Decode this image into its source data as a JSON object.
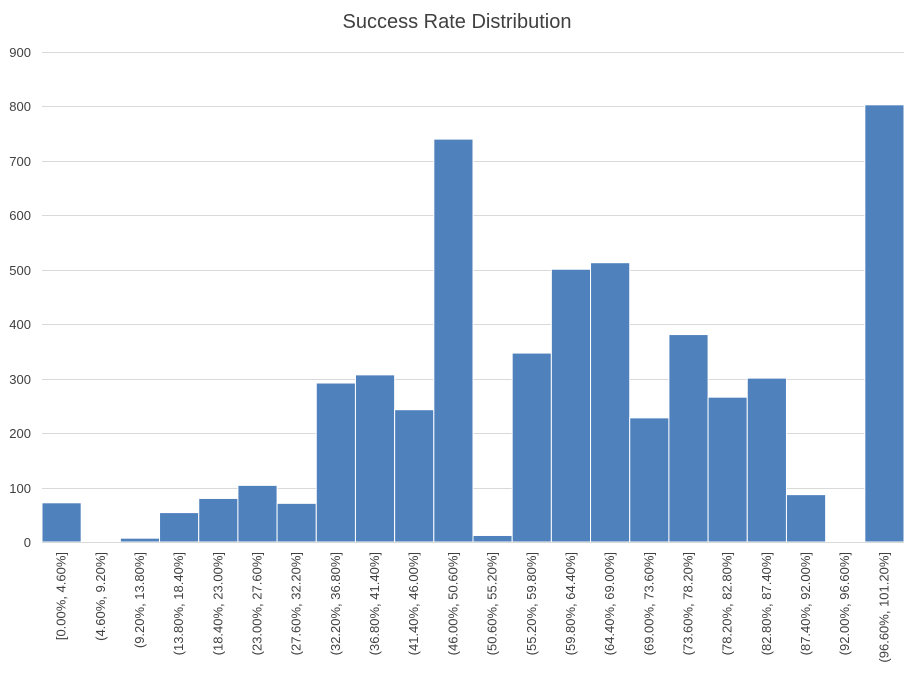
{
  "chart_data": {
    "type": "bar",
    "title": "Success Rate Distribution",
    "xlabel": "",
    "ylabel": "",
    "ylim": [
      0,
      900
    ],
    "yticks": [
      0,
      100,
      200,
      300,
      400,
      500,
      600,
      700,
      800,
      900
    ],
    "grid": true,
    "legend": "none",
    "bar_color": "#4f81bd",
    "categories": [
      "[0.00%, 4.60%]",
      "(4.60%, 9.20%]",
      "(9.20%, 13.80%]",
      "(13.80%, 18.40%]",
      "(18.40%, 23.00%]",
      "(23.00%, 27.60%]",
      "(27.60%, 32.20%]",
      "(32.20%, 36.80%]",
      "(36.80%, 41.40%]",
      "(41.40%, 46.00%]",
      "(46.00%, 50.60%]",
      "(50.60%, 55.20%]",
      "(55.20%, 59.80%]",
      "(59.80%, 64.40%]",
      "(64.40%, 69.00%]",
      "(69.00%, 73.60%]",
      "(73.60%, 78.20%]",
      "(78.20%, 82.80%]",
      "(82.80%, 87.40%]",
      "(87.40%, 92.00%]",
      "(92.00%, 96.60%]",
      "(96.60%, 101.20%]"
    ],
    "values": [
      72,
      0,
      7,
      54,
      80,
      104,
      71,
      292,
      307,
      243,
      740,
      12,
      347,
      501,
      513,
      228,
      381,
      266,
      301,
      87,
      0,
      803
    ]
  }
}
